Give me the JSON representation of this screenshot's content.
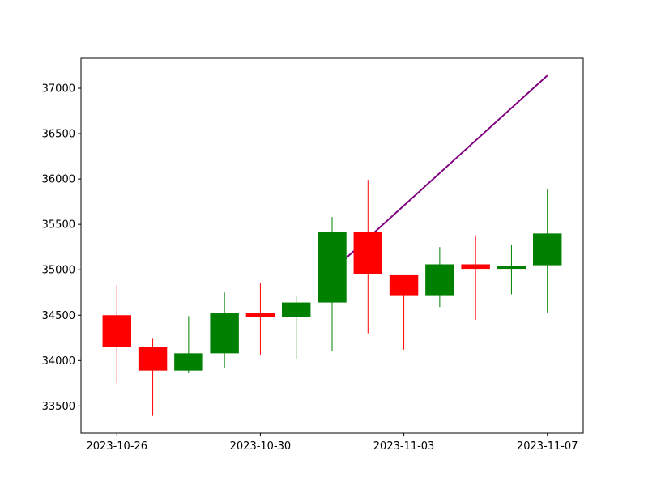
{
  "chart_data": {
    "type": "candlestick",
    "title": "",
    "xlabel": "",
    "ylabel": "",
    "ylim": [
      33200,
      37330
    ],
    "x_range": [
      "2023-10-25",
      "2023-11-08"
    ],
    "y_ticks": [
      33500,
      34000,
      34500,
      35000,
      35500,
      36000,
      36500,
      37000
    ],
    "x_ticks": [
      "2023-10-26",
      "2023-10-30",
      "2023-11-03",
      "2023-11-07"
    ],
    "grid": false,
    "colors": {
      "up": "#008000",
      "down": "#ff0000",
      "trend": "#800080"
    },
    "candles": [
      {
        "date": "2023-10-26",
        "open": 34500,
        "high": 34830,
        "low": 33750,
        "close": 34150
      },
      {
        "date": "2023-10-27",
        "open": 34150,
        "high": 34240,
        "low": 33390,
        "close": 33890
      },
      {
        "date": "2023-10-28",
        "open": 33890,
        "high": 34490,
        "low": 33860,
        "close": 34080
      },
      {
        "date": "2023-10-29",
        "open": 34080,
        "high": 34750,
        "low": 33920,
        "close": 34520
      },
      {
        "date": "2023-10-30",
        "open": 34520,
        "high": 34850,
        "low": 34060,
        "close": 34480
      },
      {
        "date": "2023-10-31",
        "open": 34480,
        "high": 34720,
        "low": 34020,
        "close": 34640
      },
      {
        "date": "2023-11-01",
        "open": 34640,
        "high": 35580,
        "low": 34100,
        "close": 35420
      },
      {
        "date": "2023-11-02",
        "open": 35420,
        "high": 35990,
        "low": 34300,
        "close": 34950
      },
      {
        "date": "2023-11-03",
        "open": 34940,
        "high": 34940,
        "low": 34120,
        "close": 34720
      },
      {
        "date": "2023-11-04",
        "open": 34720,
        "high": 35250,
        "low": 34590,
        "close": 35060
      },
      {
        "date": "2023-11-05",
        "open": 35060,
        "high": 35380,
        "low": 34450,
        "close": 35010
      },
      {
        "date": "2023-11-06",
        "open": 35010,
        "high": 35270,
        "low": 34730,
        "close": 35040
      },
      {
        "date": "2023-11-07",
        "open": 35050,
        "high": 35890,
        "low": 34530,
        "close": 35400
      }
    ],
    "trend_line": [
      {
        "date": "2023-11-01",
        "value": 34990
      },
      {
        "date": "2023-11-07",
        "value": 37140
      }
    ]
  }
}
